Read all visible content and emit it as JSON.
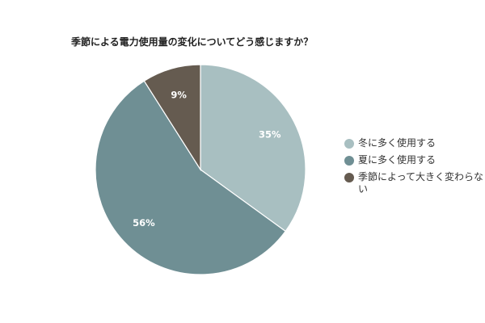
{
  "chart_data": {
    "type": "pie",
    "title": "季節による電力使用量の変化についてどう感じますか？",
    "labels": [
      "冬に多く使用する",
      "夏に多く使用する",
      "季節によって大きく変わらない"
    ],
    "values": [
      35,
      56,
      9
    ],
    "value_labels": [
      "35%",
      "56%",
      "9%"
    ],
    "colors": [
      "#a8bfc1",
      "#6f8f94",
      "#655b50"
    ],
    "legend_position": "right",
    "start_angle": "top",
    "direction": "clockwise"
  }
}
